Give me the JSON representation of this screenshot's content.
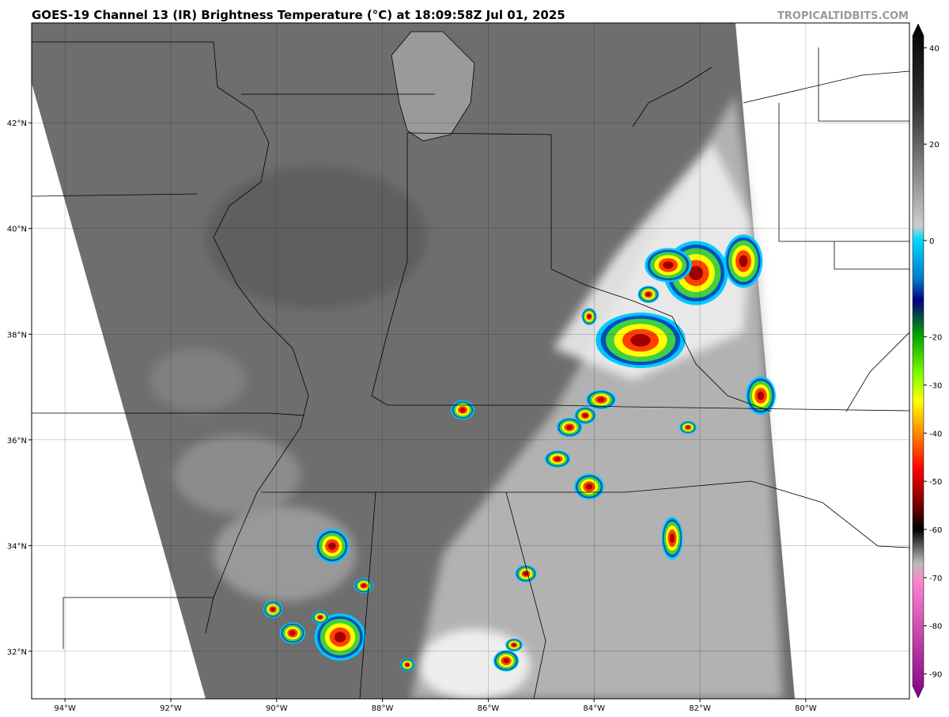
{
  "header": {
    "title": "GOES-19 Channel 13 (IR) Brightness Temperature (°C) at 18:09:58Z Jul 01, 2025",
    "credit": "TROPICALTIDBITS.COM"
  },
  "map": {
    "lonlim": [
      -94.63,
      -78.04
    ],
    "latlim": [
      31.1,
      43.89
    ],
    "lon_ticks": [
      {
        "value": -94,
        "label": "94°W"
      },
      {
        "value": -92,
        "label": "92°W"
      },
      {
        "value": -90,
        "label": "90°W"
      },
      {
        "value": -88,
        "label": "88°W"
      },
      {
        "value": -86,
        "label": "86°W"
      },
      {
        "value": -84,
        "label": "84°W"
      },
      {
        "value": -82,
        "label": "82°W"
      },
      {
        "value": -80,
        "label": "80°W"
      }
    ],
    "lat_ticks": [
      {
        "value": 32,
        "label": "32°N"
      },
      {
        "value": 34,
        "label": "34°N"
      },
      {
        "value": 36,
        "label": "36°N"
      },
      {
        "value": 38,
        "label": "38°N"
      },
      {
        "value": 40,
        "label": "40°N"
      },
      {
        "value": 42,
        "label": "42°N"
      }
    ]
  },
  "colorbar": {
    "lim": [
      -95,
      45
    ],
    "ticks": [
      40,
      20,
      0,
      -20,
      -30,
      -40,
      -50,
      -60,
      -70,
      -80,
      -90
    ]
  }
}
